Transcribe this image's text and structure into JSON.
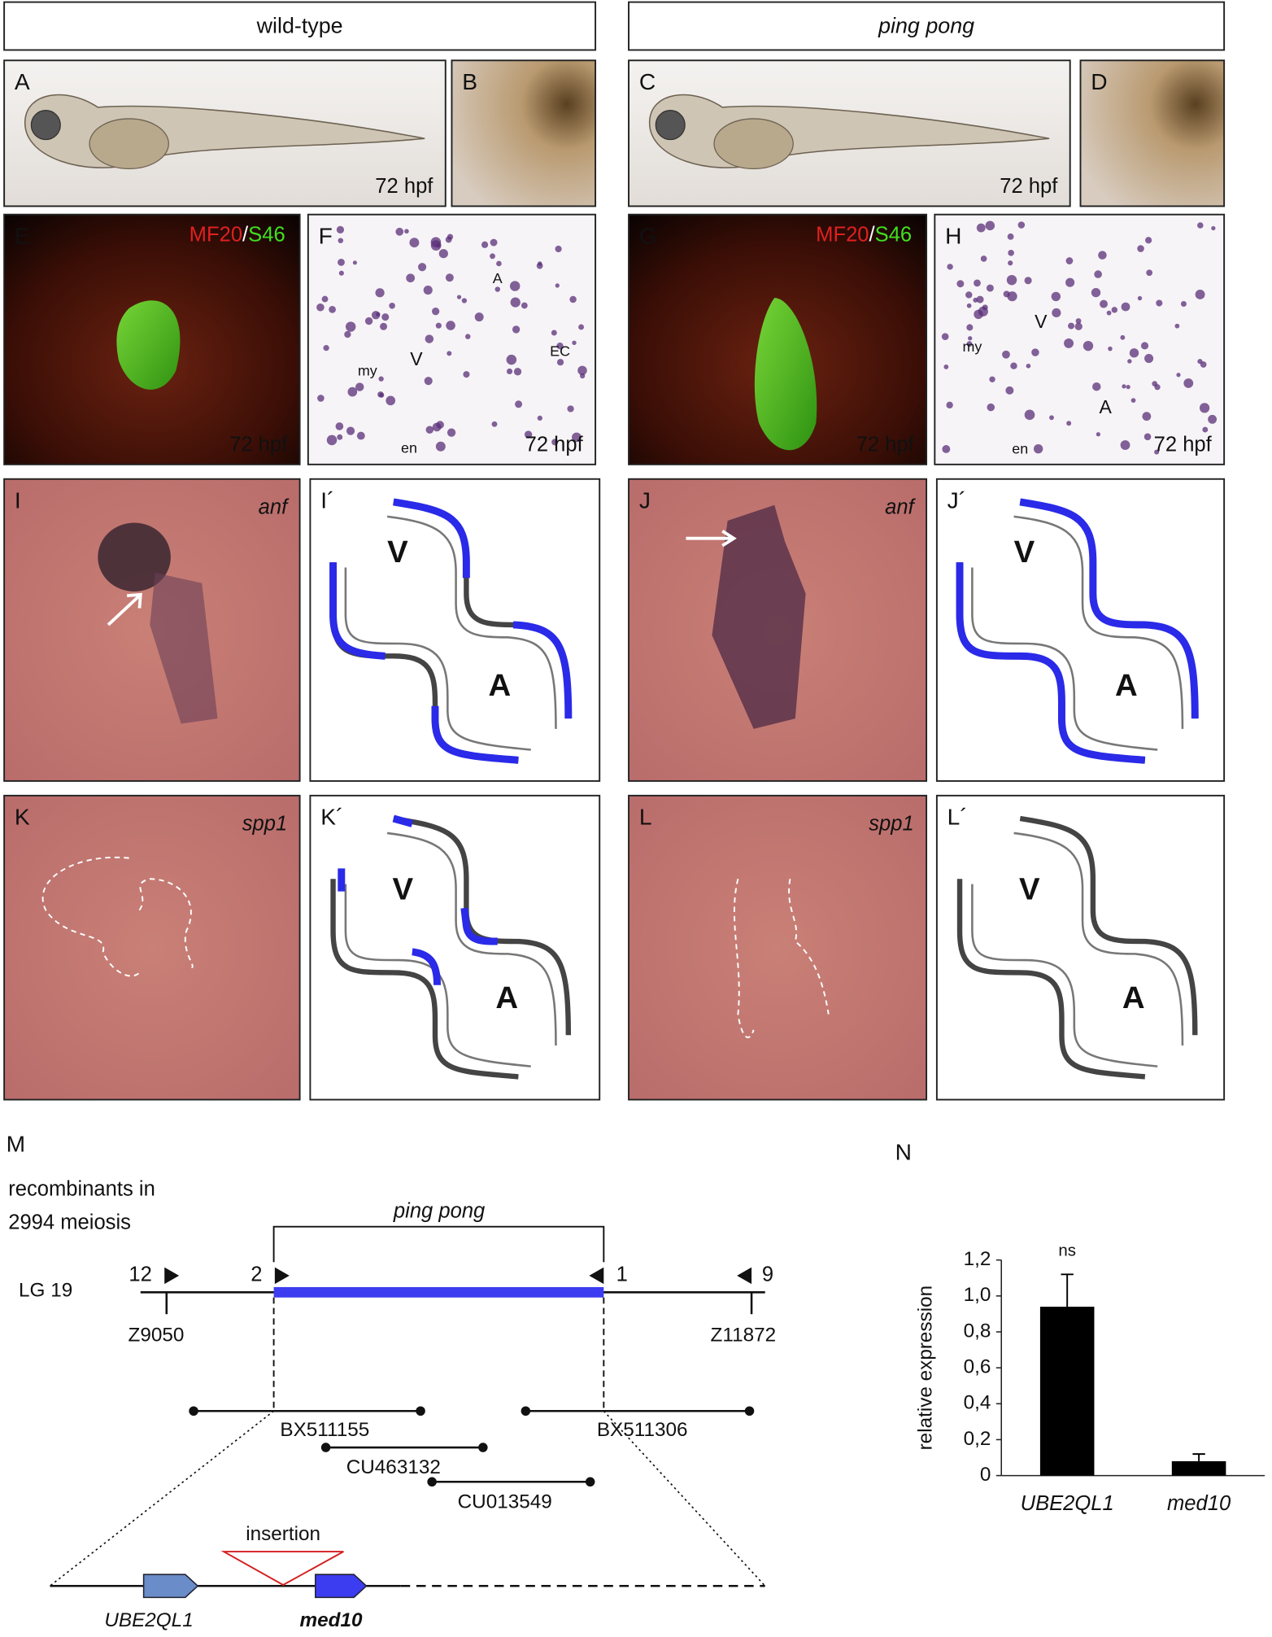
{
  "figure": {
    "headers": [
      "wild-type",
      "ping pong"
    ],
    "panels": [
      {
        "label": "A",
        "annotations": [
          "72 hpf"
        ]
      },
      {
        "label": "B"
      },
      {
        "label": "C",
        "annotations": [
          "72 hpf"
        ]
      },
      {
        "label": "D"
      },
      {
        "label": "E",
        "stain": [
          "MF20",
          "/",
          "S46"
        ],
        "annotations": [
          "72 hpf"
        ]
      },
      {
        "label": "F",
        "annotations": [
          "A",
          "EC",
          "V",
          "my",
          "en",
          "72 hpf"
        ]
      },
      {
        "label": "G",
        "stain": [
          "MF20",
          "/",
          "S46"
        ],
        "annotations": [
          "72 hpf"
        ]
      },
      {
        "label": "H",
        "annotations": [
          "V",
          "my",
          "A",
          "en",
          "72 hpf"
        ]
      },
      {
        "label": "I",
        "annotations": [
          "anf"
        ]
      },
      {
        "label": "I´",
        "annotations": [
          "V",
          "A"
        ]
      },
      {
        "label": "J",
        "annotations": [
          "anf"
        ]
      },
      {
        "label": "J´",
        "annotations": [
          "V",
          "A"
        ]
      },
      {
        "label": "K",
        "annotations": [
          "spp1"
        ]
      },
      {
        "label": "K´",
        "annotations": [
          "V",
          "A"
        ]
      },
      {
        "label": "L",
        "annotations": [
          "spp1"
        ]
      },
      {
        "label": "L´",
        "annotations": [
          "V",
          "A"
        ]
      }
    ],
    "map": {
      "label": "M",
      "title_lines": [
        "recombinants in",
        "2994 meiosis"
      ],
      "interval": "ping pong",
      "linkage_group": "LG 19",
      "recombinants": [
        "12",
        "2",
        "1",
        "9"
      ],
      "markers": [
        "Z9050",
        "Z11872"
      ],
      "clones": [
        "BX511155",
        "BX511306",
        "CU463132",
        "CU013549"
      ],
      "insertion": "insertion",
      "genes": [
        "UBE2QL1",
        "med10"
      ]
    }
  },
  "chart_data": {
    "type": "bar",
    "panel_label": "N",
    "y_label": "relative expression",
    "categories": [
      "UBE2QL1",
      "med10"
    ],
    "values": [
      0.94,
      0.08
    ],
    "errors": [
      0.18,
      0.04
    ],
    "annotation": "ns",
    "color": "#000000",
    "ylim": [
      0,
      1.2
    ],
    "yticks": [
      0,
      {
        "value": 0.2,
        "label": "0,2"
      },
      {
        "value": 0.4,
        "label": "0,4"
      },
      {
        "value": 0.6,
        "label": "0,6"
      },
      {
        "value": 0.8,
        "label": "0,8"
      },
      {
        "value": 1,
        "label": "1,0"
      },
      {
        "value": 1.2,
        "label": "1,2"
      }
    ]
  }
}
